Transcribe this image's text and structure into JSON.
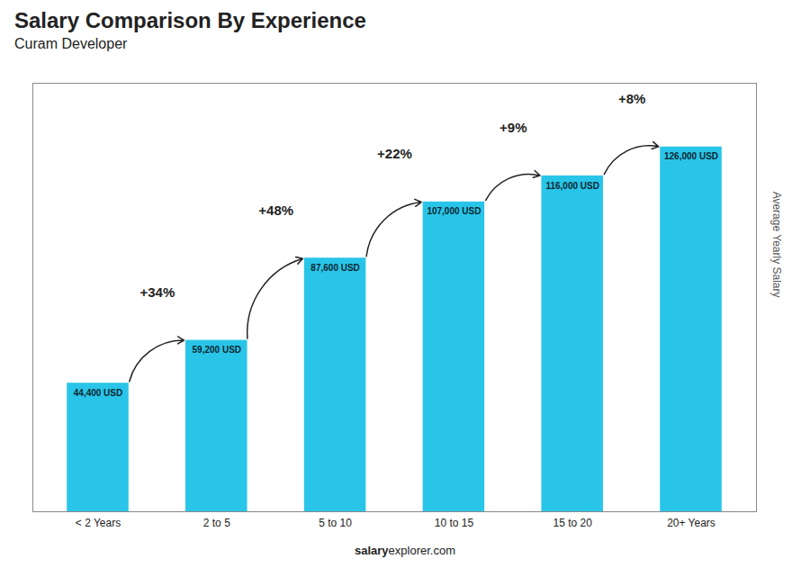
{
  "chart_data": {
    "type": "bar",
    "title": "Salary Comparison By Experience",
    "subtitle": "Curam Developer",
    "ylabel": "Average Yearly Salary",
    "categories": [
      "< 2 Years",
      "2 to 5",
      "5 to 10",
      "10 to 15",
      "15 to 20",
      "20+ Years"
    ],
    "values": [
      44400,
      59200,
      87600,
      107000,
      116000,
      126000
    ],
    "value_labels": [
      "44,400 USD",
      "59,200 USD",
      "87,600 USD",
      "107,000 USD",
      "116,000 USD",
      "126,000 USD"
    ],
    "data_labels": true,
    "color": "#29c5e8",
    "ylim": [
      0,
      148000
    ],
    "tick_labels": "x",
    "grid": false,
    "annotations": [
      "+34%",
      "+48%",
      "+22%",
      "+9%",
      "+8%"
    ],
    "source": [
      "salary",
      "explorer.com"
    ]
  }
}
